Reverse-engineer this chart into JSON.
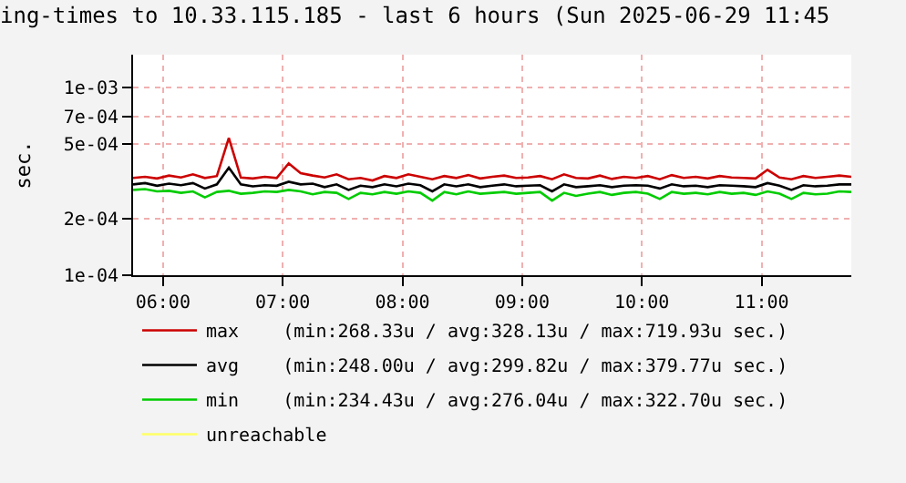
{
  "chart_data": {
    "type": "line",
    "title": "ing-times to 10.33.115.185 - last 6 hours (Sun 2025-06-29 11:45",
    "ylabel": "sec.",
    "log": true,
    "grid": true,
    "legend": "bottom",
    "marker": "none",
    "line_style": "solid",
    "x": [
      "2025-06-29T05:45",
      "2025-06-29T05:51",
      "2025-06-29T05:57",
      "2025-06-29T06:03",
      "2025-06-29T06:09",
      "2025-06-29T06:15",
      "2025-06-29T06:21",
      "2025-06-29T06:27",
      "2025-06-29T06:33",
      "2025-06-29T06:39",
      "2025-06-29T06:45",
      "2025-06-29T06:51",
      "2025-06-29T06:57",
      "2025-06-29T07:03",
      "2025-06-29T07:09",
      "2025-06-29T07:15",
      "2025-06-29T07:21",
      "2025-06-29T07:27",
      "2025-06-29T07:33",
      "2025-06-29T07:39",
      "2025-06-29T07:45",
      "2025-06-29T07:51",
      "2025-06-29T07:57",
      "2025-06-29T08:03",
      "2025-06-29T08:09",
      "2025-06-29T08:15",
      "2025-06-29T08:21",
      "2025-06-29T08:27",
      "2025-06-29T08:33",
      "2025-06-29T08:39",
      "2025-06-29T08:45",
      "2025-06-29T08:51",
      "2025-06-29T08:57",
      "2025-06-29T09:03",
      "2025-06-29T09:09",
      "2025-06-29T09:15",
      "2025-06-29T09:21",
      "2025-06-29T09:27",
      "2025-06-29T09:33",
      "2025-06-29T09:39",
      "2025-06-29T09:45",
      "2025-06-29T09:51",
      "2025-06-29T09:57",
      "2025-06-29T10:03",
      "2025-06-29T10:09",
      "2025-06-29T10:15",
      "2025-06-29T10:21",
      "2025-06-29T10:27",
      "2025-06-29T10:33",
      "2025-06-29T10:39",
      "2025-06-29T10:45",
      "2025-06-29T10:51",
      "2025-06-29T10:57",
      "2025-06-29T11:03",
      "2025-06-29T11:09",
      "2025-06-29T11:15",
      "2025-06-29T11:21",
      "2025-06-29T11:27",
      "2025-06-29T11:33",
      "2025-06-29T11:39",
      "2025-06-29T11:45"
    ],
    "series": [
      {
        "name": "max    (min:268.33u / avg:328.13u / max:719.93u sec.)",
        "color": "#cc0000",
        "values": [
          0.00033,
          0.000335,
          0.000328,
          0.00034,
          0.000332,
          0.000345,
          0.00033,
          0.000338,
          0.00054,
          0.000332,
          0.000328,
          0.000335,
          0.00033,
          0.000395,
          0.00035,
          0.00034,
          0.000332,
          0.000345,
          0.000325,
          0.00033,
          0.00032,
          0.000338,
          0.00033,
          0.000345,
          0.000335,
          0.000325,
          0.000338,
          0.00033,
          0.000342,
          0.000328,
          0.000335,
          0.00034,
          0.00033,
          0.000332,
          0.000338,
          0.000325,
          0.000345,
          0.00033,
          0.000328,
          0.00034,
          0.000326,
          0.000335,
          0.00033,
          0.000338,
          0.000325,
          0.000342,
          0.00033,
          0.000335,
          0.000328,
          0.000338,
          0.000332,
          0.00033,
          0.000328,
          0.000365,
          0.000332,
          0.000325,
          0.000338,
          0.00033,
          0.000335,
          0.00034,
          0.000335
        ]
      },
      {
        "name": "avg    (min:248.00u / avg:299.82u / max:379.77u sec.)",
        "color": "#000000",
        "values": [
          0.000305,
          0.00031,
          0.0003,
          0.000308,
          0.000302,
          0.00031,
          0.00029,
          0.000305,
          0.000375,
          0.000305,
          0.000298,
          0.000302,
          0.0003,
          0.000315,
          0.000305,
          0.000308,
          0.000295,
          0.000305,
          0.000285,
          0.0003,
          0.000295,
          0.000305,
          0.000298,
          0.000308,
          0.000302,
          0.00028,
          0.000305,
          0.000298,
          0.000305,
          0.000295,
          0.0003,
          0.000305,
          0.000298,
          0.0003,
          0.000302,
          0.00028,
          0.000305,
          0.000295,
          0.000298,
          0.000302,
          0.000295,
          0.0003,
          0.000302,
          0.0003,
          0.00029,
          0.000305,
          0.000298,
          0.0003,
          0.000295,
          0.000302,
          0.0003,
          0.000298,
          0.000295,
          0.00031,
          0.0003,
          0.000285,
          0.000302,
          0.000298,
          0.0003,
          0.000305,
          0.000305
        ]
      },
      {
        "name": "min    (min:234.43u / avg:276.04u / max:322.70u sec.)",
        "color": "#00cc00",
        "values": [
          0.000285,
          0.000288,
          0.00028,
          0.000282,
          0.000275,
          0.00028,
          0.00026,
          0.000278,
          0.000282,
          0.000272,
          0.000275,
          0.00028,
          0.000278,
          0.000285,
          0.00028,
          0.00027,
          0.000278,
          0.000275,
          0.000255,
          0.000275,
          0.00027,
          0.000278,
          0.000272,
          0.00028,
          0.000275,
          0.00025,
          0.000278,
          0.00027,
          0.00028,
          0.000272,
          0.000275,
          0.000278,
          0.000272,
          0.000275,
          0.000278,
          0.00025,
          0.000275,
          0.000265,
          0.000272,
          0.000278,
          0.000268,
          0.000275,
          0.000278,
          0.000272,
          0.000255,
          0.000278,
          0.000272,
          0.000275,
          0.00027,
          0.000278,
          0.000272,
          0.000275,
          0.000268,
          0.00028,
          0.000272,
          0.000255,
          0.000275,
          0.00027,
          0.000272,
          0.00028,
          0.000278
        ]
      },
      {
        "name": "unreachable",
        "color": "#ffff66",
        "values": [
          null,
          null,
          null,
          null,
          null,
          null,
          null,
          null,
          null,
          null,
          null,
          null,
          null,
          null,
          null,
          null,
          null,
          null,
          null,
          null,
          null,
          null,
          null,
          null,
          null,
          null,
          null,
          null,
          null,
          null,
          null,
          null,
          null,
          null,
          null,
          null,
          null,
          null,
          null,
          null,
          null,
          null,
          null,
          null,
          null,
          null,
          null,
          null,
          null,
          null,
          null,
          null,
          null,
          null,
          null,
          null,
          null,
          null,
          null,
          null,
          null
        ]
      }
    ],
    "xlim": [
      "2025-06-29T05:45",
      "2025-06-29T11:45"
    ],
    "xticks": [
      {
        "value": "2025-06-29T06:00",
        "label": "06:00"
      },
      {
        "value": "2025-06-29T07:00",
        "label": "07:00"
      },
      {
        "value": "2025-06-29T08:00",
        "label": "08:00"
      },
      {
        "value": "2025-06-29T09:00",
        "label": "09:00"
      },
      {
        "value": "2025-06-29T10:00",
        "label": "10:00"
      },
      {
        "value": "2025-06-29T11:00",
        "label": "11:00"
      }
    ],
    "ylim": [
      0.0001,
      0.0015
    ],
    "yticks": [
      {
        "value": 0.0001,
        "label": "1e-04"
      },
      {
        "value": 0.0002,
        "label": "2e-04"
      },
      {
        "value": 0.0005,
        "label": "5e-04"
      },
      {
        "value": 0.0007,
        "label": "7e-04"
      },
      {
        "value": 0.001,
        "label": "1e-03"
      }
    ]
  }
}
